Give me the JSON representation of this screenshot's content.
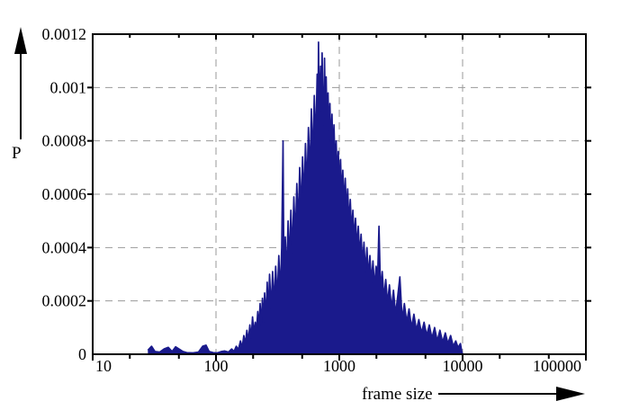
{
  "chart_data": {
    "type": "area",
    "title": "",
    "xlabel": "frame size",
    "ylabel": "P",
    "x_scale": "log",
    "x_range": [
      10,
      100000
    ],
    "y_range": [
      0,
      0.0012
    ],
    "x_ticks": [
      10,
      100,
      1000,
      10000,
      100000
    ],
    "x_tick_labels": [
      "10",
      "100",
      "1000",
      "10000",
      "100000"
    ],
    "x_minor_tick_multipliers": [
      2,
      5
    ],
    "y_ticks": [
      0,
      0.0002,
      0.0004,
      0.0006,
      0.0008,
      0.001,
      0.0012
    ],
    "y_tick_labels": [
      "0",
      "0.0002",
      "0.0004",
      "0.0006",
      "0.0008",
      "0.001",
      "0.0012"
    ],
    "grid": true,
    "legend": "none",
    "series_color": "#1a1a8c",
    "grid_color": "#999999",
    "axis_color": "#000000",
    "background_color": "#ffffff",
    "points": [
      [
        28,
        1.5e-05
      ],
      [
        30,
        3e-05
      ],
      [
        32,
        1e-05
      ],
      [
        35,
        8e-06
      ],
      [
        38,
        2e-05
      ],
      [
        41,
        2.6e-05
      ],
      [
        44,
        1e-05
      ],
      [
        47,
        2.8e-05
      ],
      [
        50,
        2e-05
      ],
      [
        54,
        1e-05
      ],
      [
        58,
        6e-06
      ],
      [
        65,
        5e-06
      ],
      [
        72,
        8e-06
      ],
      [
        78,
        3e-05
      ],
      [
        83,
        3.4e-05
      ],
      [
        88,
        1e-05
      ],
      [
        95,
        6e-06
      ],
      [
        102,
        5e-06
      ],
      [
        110,
        1e-05
      ],
      [
        118,
        1.2e-05
      ],
      [
        126,
        8e-06
      ],
      [
        134,
        2e-05
      ],
      [
        140,
        1e-05
      ],
      [
        146,
        3e-05
      ],
      [
        152,
        1.8e-05
      ],
      [
        158,
        5e-05
      ],
      [
        163,
        2.5e-05
      ],
      [
        168,
        7e-05
      ],
      [
        173,
        4e-05
      ],
      [
        178,
        9e-05
      ],
      [
        183,
        5e-05
      ],
      [
        188,
        0.00011
      ],
      [
        193,
        6e-05
      ],
      [
        198,
        0.00014
      ],
      [
        203,
        8e-05
      ],
      [
        208,
        0.00012
      ],
      [
        213,
        9e-05
      ],
      [
        218,
        0.00016
      ],
      [
        223,
        0.0001
      ],
      [
        228,
        0.00019
      ],
      [
        233,
        0.00011
      ],
      [
        238,
        0.00021
      ],
      [
        243,
        0.00012
      ],
      [
        248,
        0.00023
      ],
      [
        254,
        0.00014
      ],
      [
        260,
        0.00027
      ],
      [
        266,
        0.00015
      ],
      [
        272,
        0.0003
      ],
      [
        280,
        0.00017
      ],
      [
        288,
        0.00031
      ],
      [
        296,
        0.00019
      ],
      [
        305,
        0.00033
      ],
      [
        314,
        0.00021
      ],
      [
        323,
        0.00037
      ],
      [
        332,
        0.00023
      ],
      [
        341,
        0.0004
      ],
      [
        350,
        0.0008
      ],
      [
        356,
        0.00027
      ],
      [
        365,
        0.00044
      ],
      [
        374,
        0.00029
      ],
      [
        384,
        0.0005
      ],
      [
        394,
        0.00034
      ],
      [
        405,
        0.00054
      ],
      [
        416,
        0.00038
      ],
      [
        428,
        0.00059
      ],
      [
        440,
        0.00044
      ],
      [
        452,
        0.00064
      ],
      [
        464,
        0.00048
      ],
      [
        477,
        0.0007
      ],
      [
        490,
        0.00053
      ],
      [
        504,
        0.00074
      ],
      [
        518,
        0.00058
      ],
      [
        532,
        0.00079
      ],
      [
        547,
        0.00062
      ],
      [
        562,
        0.00085
      ],
      [
        578,
        0.00067
      ],
      [
        594,
        0.00092
      ],
      [
        610,
        0.00072
      ],
      [
        627,
        0.00097
      ],
      [
        644,
        0.00078
      ],
      [
        661,
        0.00105
      ],
      [
        672,
        0.00088
      ],
      [
        678,
        0.00117
      ],
      [
        686,
        0.0009
      ],
      [
        695,
        0.001
      ],
      [
        705,
        0.00108
      ],
      [
        715,
        0.00091
      ],
      [
        726,
        0.00113
      ],
      [
        737,
        0.00094
      ],
      [
        748,
        0.00086
      ],
      [
        759,
        0.00111
      ],
      [
        771,
        0.00089
      ],
      [
        783,
        0.00104
      ],
      [
        796,
        0.00084
      ],
      [
        810,
        0.00098
      ],
      [
        825,
        0.0008
      ],
      [
        840,
        0.00094
      ],
      [
        856,
        0.00076
      ],
      [
        872,
        0.0009
      ],
      [
        889,
        0.00073
      ],
      [
        906,
        0.00086
      ],
      [
        924,
        0.0007
      ],
      [
        943,
        0.0008
      ],
      [
        962,
        0.00066
      ],
      [
        982,
        0.00076
      ],
      [
        1002,
        0.00063
      ],
      [
        1023,
        0.00073
      ],
      [
        1045,
        0.00059
      ],
      [
        1068,
        0.00069
      ],
      [
        1092,
        0.00056
      ],
      [
        1117,
        0.00066
      ],
      [
        1143,
        0.00053
      ],
      [
        1170,
        0.00062
      ],
      [
        1198,
        0.00049
      ],
      [
        1227,
        0.00058
      ],
      [
        1257,
        0.00046
      ],
      [
        1288,
        0.00054
      ],
      [
        1320,
        0.00043
      ],
      [
        1354,
        0.00051
      ],
      [
        1389,
        0.0004
      ],
      [
        1425,
        0.00048
      ],
      [
        1463,
        0.00037
      ],
      [
        1502,
        0.00045
      ],
      [
        1543,
        0.00034
      ],
      [
        1585,
        0.00042
      ],
      [
        1629,
        0.00031
      ],
      [
        1675,
        0.0004
      ],
      [
        1722,
        0.00029
      ],
      [
        1771,
        0.00037
      ],
      [
        1822,
        0.00027
      ],
      [
        1875,
        0.00035
      ],
      [
        1930,
        0.00025
      ],
      [
        1987,
        0.00033
      ],
      [
        2046,
        0.00029
      ],
      [
        2100,
        0.00048
      ],
      [
        2160,
        0.00024
      ],
      [
        2230,
        0.00031
      ],
      [
        2300,
        0.00021
      ],
      [
        2380,
        0.00028
      ],
      [
        2460,
        0.00019
      ],
      [
        2550,
        0.00026
      ],
      [
        2650,
        0.00017
      ],
      [
        2750,
        0.00024
      ],
      [
        2860,
        0.00015
      ],
      [
        2980,
        0.00022
      ],
      [
        3100,
        0.00029
      ],
      [
        3230,
        0.00013
      ],
      [
        3370,
        0.00019
      ],
      [
        3520,
        0.00012
      ],
      [
        3680,
        0.00017
      ],
      [
        3850,
        0.0001
      ],
      [
        4030,
        0.00015
      ],
      [
        4220,
        9e-05
      ],
      [
        4420,
        0.00013
      ],
      [
        4640,
        8e-05
      ],
      [
        4870,
        0.00012
      ],
      [
        5110,
        7e-05
      ],
      [
        5370,
        0.00011
      ],
      [
        5640,
        6e-05
      ],
      [
        5930,
        0.0001
      ],
      [
        6230,
        5e-05
      ],
      [
        6550,
        9e-05
      ],
      [
        6890,
        4.5e-05
      ],
      [
        7240,
        8e-05
      ],
      [
        7610,
        4e-05
      ],
      [
        8000,
        7e-05
      ],
      [
        8400,
        3e-05
      ],
      [
        8800,
        5e-05
      ],
      [
        9200,
        2.5e-05
      ],
      [
        9600,
        4e-05
      ],
      [
        9850,
        1e-05
      ],
      [
        10000,
        0
      ]
    ]
  }
}
